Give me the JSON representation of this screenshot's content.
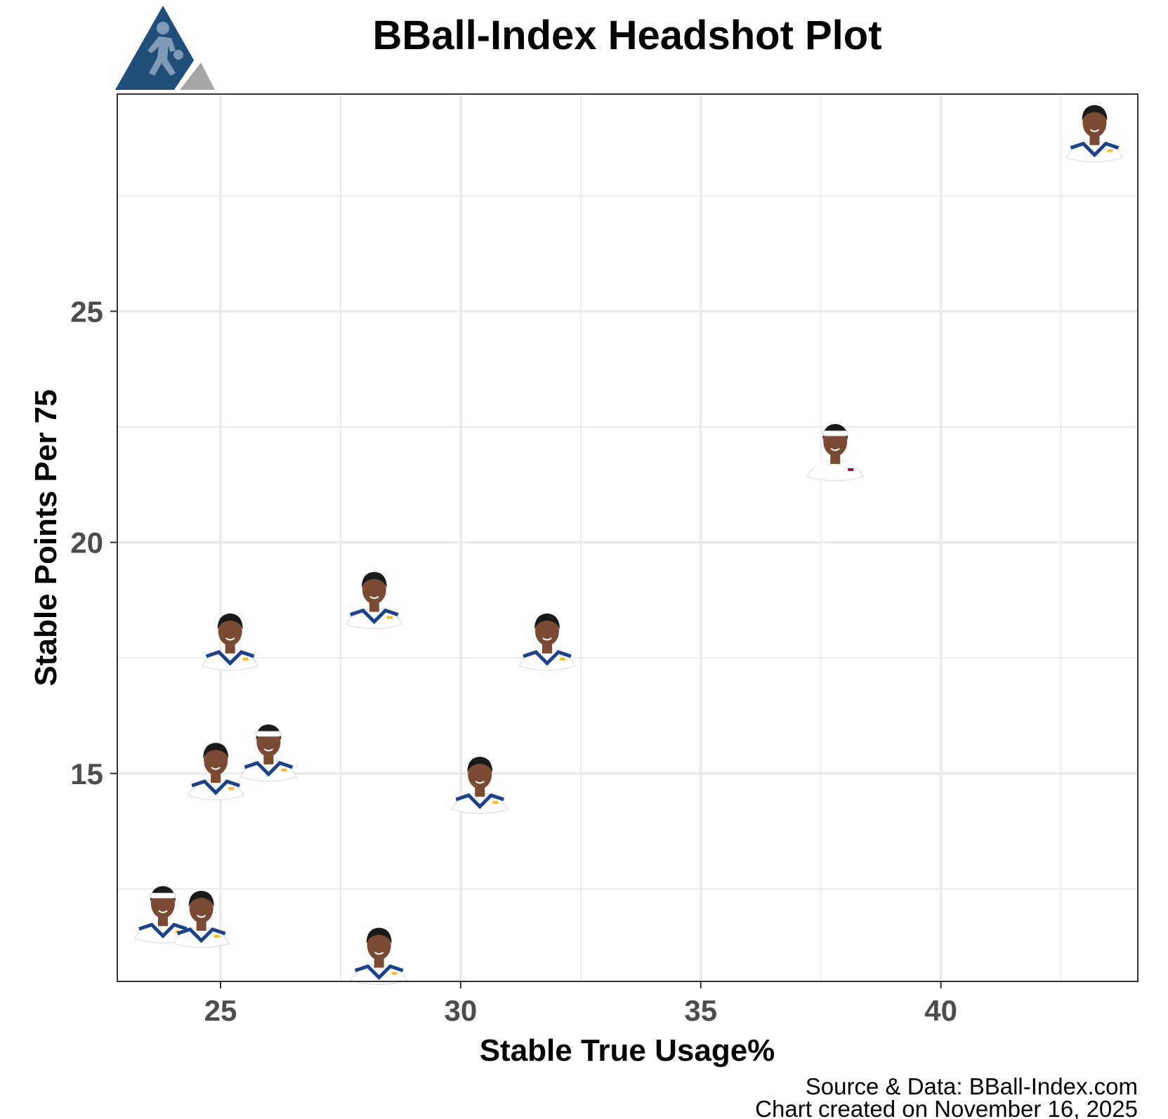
{
  "chart_data": {
    "type": "scatter",
    "title": "BBall-Index Headshot Plot",
    "xlabel": "Stable True Usage%",
    "ylabel": "Stable Points Per 75",
    "xlim": [
      22.85,
      44.1
    ],
    "ylim": [
      10.5,
      29.7
    ],
    "x_ticks": [
      25,
      30,
      35,
      40
    ],
    "y_ticks": [
      15,
      20,
      25
    ],
    "grid": true,
    "legend": "none",
    "marker": "player-headshot",
    "points": [
      {
        "x": 43.2,
        "y": 28.9,
        "jersey": "#ffffff",
        "trim": "#1d428a",
        "accent": "#fdb927",
        "headband": ""
      },
      {
        "x": 37.8,
        "y": 22.0,
        "jersey": "#ffffff",
        "trim": "#ffffff",
        "accent": "#98002e",
        "headband": "#ffffff"
      },
      {
        "x": 28.2,
        "y": 18.8,
        "jersey": "#ffffff",
        "trim": "#1d428a",
        "accent": "#fdb927",
        "headband": ""
      },
      {
        "x": 25.2,
        "y": 17.9,
        "jersey": "#ffffff",
        "trim": "#1d428a",
        "accent": "#fdb927",
        "headband": ""
      },
      {
        "x": 31.8,
        "y": 17.9,
        "jersey": "#ffffff",
        "trim": "#1d428a",
        "accent": "#fdb927",
        "headband": ""
      },
      {
        "x": 26.0,
        "y": 15.5,
        "jersey": "#ffffff",
        "trim": "#1d428a",
        "accent": "#fdb927",
        "headband": "#ffffff"
      },
      {
        "x": 24.9,
        "y": 15.1,
        "jersey": "#ffffff",
        "trim": "#1d428a",
        "accent": "#fdb927",
        "headband": ""
      },
      {
        "x": 30.4,
        "y": 14.8,
        "jersey": "#ffffff",
        "trim": "#1d428a",
        "accent": "#fdb927",
        "headband": ""
      },
      {
        "x": 23.8,
        "y": 12.0,
        "jersey": "#ffffff",
        "trim": "#1d428a",
        "accent": "#fdb927",
        "headband": "#ffffff"
      },
      {
        "x": 24.6,
        "y": 11.9,
        "jersey": "#ffffff",
        "trim": "#1d428a",
        "accent": "#fdb927",
        "headband": ""
      },
      {
        "x": 28.3,
        "y": 11.1,
        "jersey": "#ffffff",
        "trim": "#1d428a",
        "accent": "#fdb927",
        "headband": ""
      }
    ]
  },
  "caption": {
    "line1": "Source & Data: BBall-Index.com",
    "line2": "Chart created on November 16, 2025"
  },
  "logo": {
    "name": "bball-index-logo",
    "primary_color": "#1f4e79",
    "secondary_color": "#a6a6a6"
  },
  "colors": {
    "grid": "#ebebeb",
    "border": "#333333",
    "tick_label": "#4d4d4d",
    "skin": "#7a4a32",
    "hair": "#1a1a1a"
  }
}
